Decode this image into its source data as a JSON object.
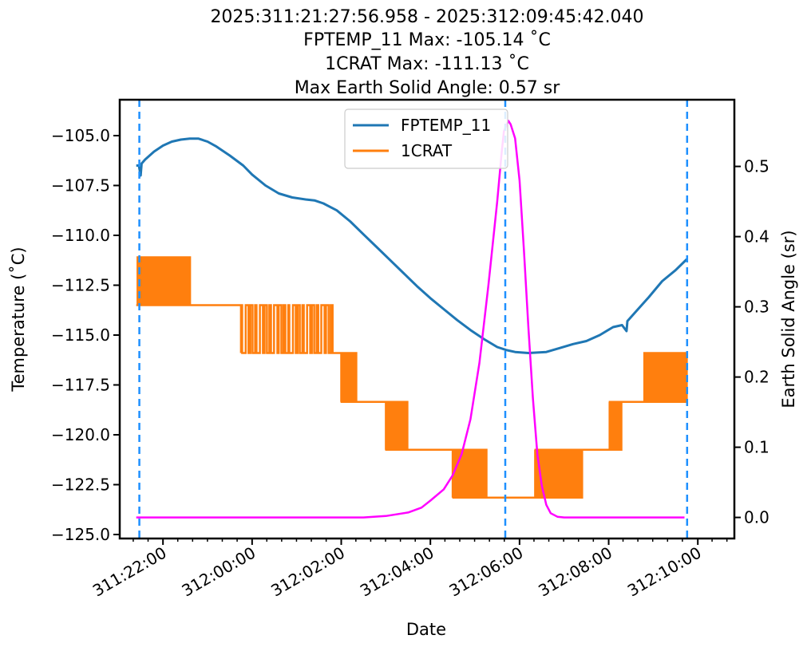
{
  "chart_data": {
    "type": "line",
    "title_lines": [
      "2025:311:21:27:56.958 - 2025:312:09:45:42.040",
      "FPTEMP_11 Max: -105.14 ˚C",
      "1CRAT Max: -111.13 ˚C",
      "Max Earth Solid Angle: 0.57 sr"
    ],
    "xlabel": "Date",
    "ylabel_left": "Temperature (˚C)",
    "ylabel_right": "Earth Solid Angle (sr)",
    "x_unit": "hours since 311:21:00",
    "xlim": [
      0.03,
      13.82
    ],
    "ylim_left": [
      -125.2,
      -103.2
    ],
    "ylim_right": [
      -0.03,
      0.595
    ],
    "x_ticks": [
      {
        "value": 1,
        "label": "311:22:00"
      },
      {
        "value": 3,
        "label": "312:00:00"
      },
      {
        "value": 5,
        "label": "312:02:00"
      },
      {
        "value": 7,
        "label": "312:04:00"
      },
      {
        "value": 9,
        "label": "312:06:00"
      },
      {
        "value": 11,
        "label": "312:08:00"
      },
      {
        "value": 13,
        "label": "312:10:00"
      }
    ],
    "x_minor_step": 0.333,
    "y_ticks_left": [
      -105.0,
      -107.5,
      -110.0,
      -112.5,
      -115.0,
      -117.5,
      -120.0,
      -122.5,
      -125.0
    ],
    "y_tick_labels_left": [
      "−105.0",
      "−107.5",
      "−110.0",
      "−112.5",
      "−115.0",
      "−117.5",
      "−120.0",
      "−122.5",
      "−125.0"
    ],
    "y_ticks_right": [
      0.0,
      0.1,
      0.2,
      0.3,
      0.4,
      0.5
    ],
    "y_tick_labels_right": [
      "0.0",
      "0.1",
      "0.2",
      "0.3",
      "0.4",
      "0.5"
    ],
    "vlines": [
      {
        "x": 0.47,
        "color": "#1e90ff",
        "style": "dashed"
      },
      {
        "x": 8.68,
        "color": "#1e90ff",
        "style": "dashed"
      },
      {
        "x": 12.76,
        "color": "#1e90ff",
        "style": "dashed"
      }
    ],
    "legend": {
      "position": "upper-center",
      "entries": [
        "FPTEMP_11",
        "1CRAT"
      ]
    },
    "series": [
      {
        "name": "FPTEMP_11",
        "axis": "left",
        "color": "#1f77b4",
        "points": [
          [
            0.4,
            -106.5
          ],
          [
            0.46,
            -106.5
          ],
          [
            0.5,
            -107.0
          ],
          [
            0.52,
            -106.4
          ],
          [
            0.6,
            -106.2
          ],
          [
            0.8,
            -105.8
          ],
          [
            1.0,
            -105.5
          ],
          [
            1.2,
            -105.3
          ],
          [
            1.4,
            -105.2
          ],
          [
            1.6,
            -105.15
          ],
          [
            1.8,
            -105.15
          ],
          [
            2.0,
            -105.3
          ],
          [
            2.2,
            -105.55
          ],
          [
            2.5,
            -106.0
          ],
          [
            2.8,
            -106.5
          ],
          [
            3.0,
            -106.95
          ],
          [
            3.3,
            -107.5
          ],
          [
            3.6,
            -107.9
          ],
          [
            3.9,
            -108.1
          ],
          [
            4.2,
            -108.2
          ],
          [
            4.4,
            -108.25
          ],
          [
            4.6,
            -108.4
          ],
          [
            4.9,
            -108.75
          ],
          [
            5.2,
            -109.3
          ],
          [
            5.5,
            -109.95
          ],
          [
            5.8,
            -110.6
          ],
          [
            6.1,
            -111.25
          ],
          [
            6.4,
            -111.9
          ],
          [
            6.7,
            -112.55
          ],
          [
            7.0,
            -113.15
          ],
          [
            7.3,
            -113.7
          ],
          [
            7.6,
            -114.25
          ],
          [
            7.9,
            -114.75
          ],
          [
            8.2,
            -115.2
          ],
          [
            8.5,
            -115.6
          ],
          [
            8.7,
            -115.75
          ],
          [
            8.9,
            -115.85
          ],
          [
            9.2,
            -115.9
          ],
          [
            9.6,
            -115.85
          ],
          [
            9.9,
            -115.65
          ],
          [
            10.2,
            -115.45
          ],
          [
            10.5,
            -115.3
          ],
          [
            10.8,
            -115.0
          ],
          [
            11.1,
            -114.6
          ],
          [
            11.3,
            -114.5
          ],
          [
            11.4,
            -114.8
          ],
          [
            11.42,
            -114.3
          ],
          [
            11.6,
            -113.85
          ],
          [
            11.9,
            -113.1
          ],
          [
            12.2,
            -112.3
          ],
          [
            12.5,
            -111.75
          ],
          [
            12.75,
            -111.2
          ]
        ]
      },
      {
        "name": "1CRAT",
        "axis": "left",
        "color": "#ff7f0e",
        "levels": [
          {
            "x_start": 0.4,
            "x_end": 1.64,
            "base": -113.5,
            "spike_to": -111.1,
            "x_spike_start": 0.43,
            "x_spike_end": 1.63,
            "count": 26
          },
          {
            "x_start": 1.64,
            "x_end": 2.75,
            "base": -113.5
          },
          {
            "x_start": 2.75,
            "x_end": 4.87,
            "base": -115.9,
            "spike_to": -113.5,
            "x_spike_start": 2.75,
            "x_spike_end": 4.87,
            "count": 20
          },
          {
            "x_start": 4.87,
            "x_end": 5.0,
            "base": -115.9
          },
          {
            "x_start": 5.0,
            "x_end": 5.95,
            "base": -118.35,
            "spike_to": -115.9,
            "x_spike_start": 5.0,
            "x_spike_end": 5.35,
            "count": 12
          },
          {
            "x_start": 5.95,
            "x_end": 6.0,
            "base": -118.35
          },
          {
            "x_start": 6.0,
            "x_end": 7.5,
            "base": -120.75,
            "spike_to": -118.35,
            "x_spike_start": 6.0,
            "x_spike_end": 6.5,
            "count": 16
          },
          {
            "x_start": 7.5,
            "x_end": 9.35,
            "base": -123.15,
            "spike_to": -120.75,
            "x_spike_start": 7.5,
            "x_spike_end": 8.3,
            "count": 14
          },
          {
            "x_start": 9.35,
            "x_end": 10.42,
            "base": -120.75,
            "spike_to": -123.15,
            "x_spike_start": 9.35,
            "x_spike_end": 10.42,
            "count": 40
          },
          {
            "x_start": 10.42,
            "x_end": 11.02,
            "base": -120.75
          },
          {
            "x_start": 11.02,
            "x_end": 11.3,
            "base": -118.35,
            "spike_to": -120.75,
            "x_spike_start": 11.02,
            "x_spike_end": 11.3,
            "count": 14
          },
          {
            "x_start": 11.3,
            "x_end": 12.77,
            "base": -118.35,
            "spike_to": -115.9,
            "x_spike_start": 11.8,
            "x_spike_end": 12.77,
            "count": 22
          }
        ]
      },
      {
        "name": "Earth Solid Angle",
        "axis": "right",
        "color": "#ff00ff",
        "points": [
          [
            0.4,
            0.0
          ],
          [
            5.5,
            0.0
          ],
          [
            6.0,
            0.002
          ],
          [
            6.5,
            0.007
          ],
          [
            6.8,
            0.014
          ],
          [
            7.0,
            0.024
          ],
          [
            7.3,
            0.04
          ],
          [
            7.5,
            0.06
          ],
          [
            7.7,
            0.09
          ],
          [
            7.9,
            0.14
          ],
          [
            8.1,
            0.22
          ],
          [
            8.3,
            0.33
          ],
          [
            8.5,
            0.45
          ],
          [
            8.6,
            0.52
          ],
          [
            8.65,
            0.55
          ],
          [
            8.75,
            0.565
          ],
          [
            8.8,
            0.56
          ],
          [
            8.9,
            0.54
          ],
          [
            9.0,
            0.48
          ],
          [
            9.1,
            0.38
          ],
          [
            9.2,
            0.27
          ],
          [
            9.3,
            0.17
          ],
          [
            9.4,
            0.09
          ],
          [
            9.5,
            0.045
          ],
          [
            9.6,
            0.018
          ],
          [
            9.7,
            0.006
          ],
          [
            9.85,
            0.001
          ],
          [
            10.0,
            0.0
          ],
          [
            12.7,
            0.0
          ]
        ]
      }
    ]
  }
}
